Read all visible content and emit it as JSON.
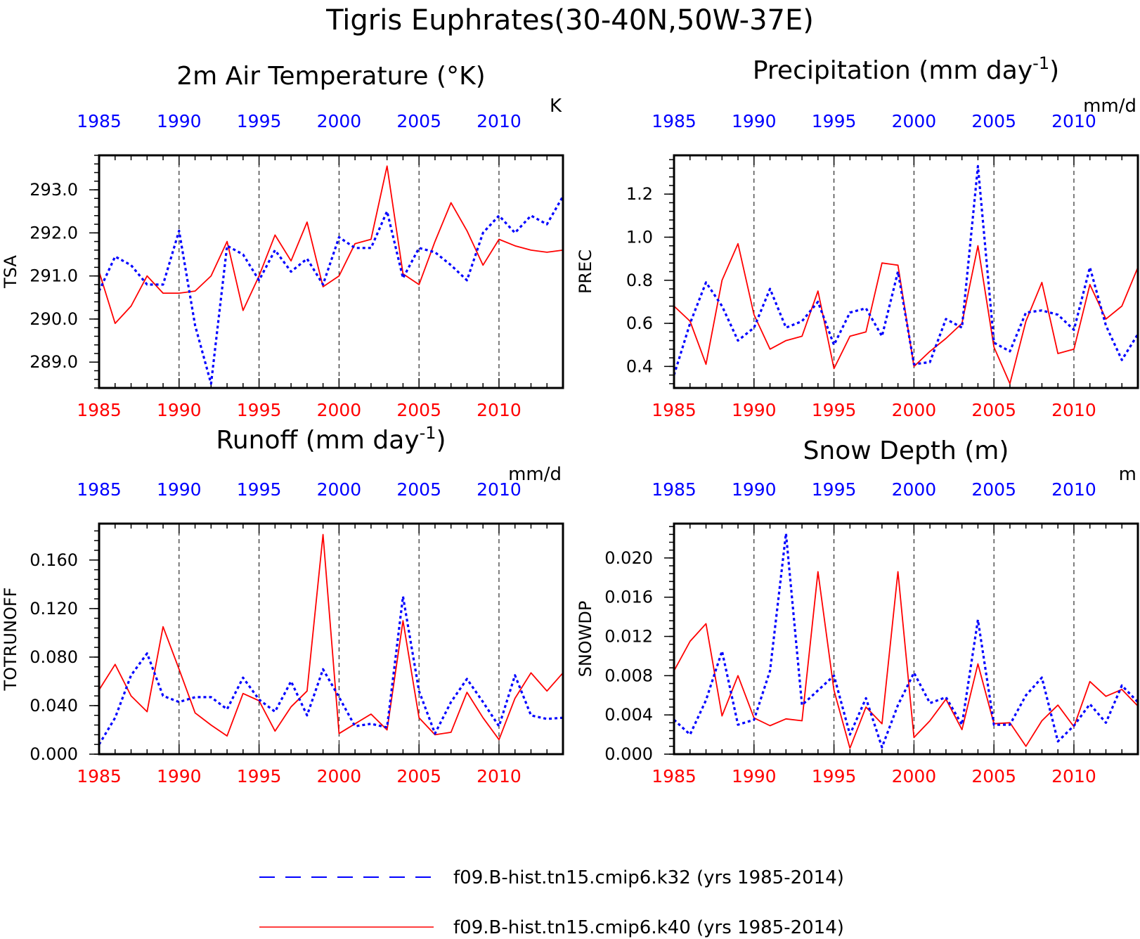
{
  "figure": {
    "title": "Tigris Euphrates(30-40N,50W-37E)"
  },
  "legend": {
    "entries": [
      {
        "label": "f09.B-hist.tn15.cmip6.k32 (yrs 1985-2014)",
        "color": "#0000ff",
        "style": "dashed"
      },
      {
        "label": "f09.B-hist.tn15.cmip6.k40 (yrs 1985-2014)",
        "color": "#ff0000",
        "style": "solid"
      }
    ]
  },
  "colors": {
    "k32": "#0000ff",
    "k40": "#ff0000",
    "axis": "#000000"
  },
  "years": [
    1985,
    1986,
    1987,
    1988,
    1989,
    1990,
    1991,
    1992,
    1993,
    1994,
    1995,
    1996,
    1997,
    1998,
    1999,
    2000,
    2001,
    2002,
    2003,
    2004,
    2005,
    2006,
    2007,
    2008,
    2009,
    2010,
    2011,
    2012,
    2013,
    2014
  ],
  "chart_data": [
    {
      "type": "line",
      "title": "2m Air Temperature (°K)",
      "title_sup": "",
      "units": "K",
      "ylabel": "TSA",
      "xlim": [
        1985,
        2014
      ],
      "ylim": [
        288.4,
        293.8
      ],
      "yticks": [
        289.0,
        290.0,
        291.0,
        292.0,
        293.0
      ],
      "ytick_labels": [
        "289.0",
        "290.0",
        "291.0",
        "292.0",
        "293.0"
      ],
      "xticks": [
        1985,
        1990,
        1995,
        2000,
        2005,
        2010
      ],
      "xtick_labels": [
        "1985",
        "1990",
        "1995",
        "2000",
        "2005",
        "2010"
      ],
      "series": [
        {
          "key": "k32",
          "values": [
            290.65,
            291.45,
            291.25,
            290.8,
            290.8,
            292.05,
            289.85,
            288.5,
            291.7,
            291.5,
            290.9,
            291.6,
            291.1,
            291.4,
            290.8,
            291.9,
            291.65,
            291.65,
            292.5,
            290.95,
            291.65,
            291.55,
            291.25,
            290.9,
            292.0,
            292.4,
            292.0,
            292.4,
            292.2,
            292.85
          ]
        },
        {
          "key": "k40",
          "values": [
            291.1,
            289.9,
            290.3,
            291.0,
            290.6,
            290.6,
            290.65,
            291.0,
            291.8,
            290.2,
            291.0,
            291.95,
            291.35,
            292.25,
            290.75,
            291.0,
            291.75,
            291.85,
            293.55,
            291.05,
            290.8,
            291.8,
            292.7,
            292.05,
            291.25,
            291.85,
            291.7,
            291.6,
            291.55,
            291.6
          ]
        }
      ]
    },
    {
      "type": "line",
      "title": "Precipitation (mm day",
      "title_sup": "-1",
      "units": "mm/d",
      "ylabel": "PREC",
      "xlim": [
        1985,
        2014
      ],
      "ylim": [
        0.3,
        1.38
      ],
      "yticks": [
        0.4,
        0.6,
        0.8,
        1.0,
        1.2
      ],
      "ytick_labels": [
        "0.4",
        "0.6",
        "0.8",
        "1.0",
        "1.2"
      ],
      "xticks": [
        1985,
        1990,
        1995,
        2000,
        2005,
        2010
      ],
      "xtick_labels": [
        "1985",
        "1990",
        "1995",
        "2000",
        "2005",
        "2010"
      ],
      "series": [
        {
          "key": "k32",
          "values": [
            0.36,
            0.6,
            0.79,
            0.68,
            0.52,
            0.58,
            0.76,
            0.58,
            0.61,
            0.7,
            0.5,
            0.65,
            0.67,
            0.54,
            0.84,
            0.41,
            0.42,
            0.62,
            0.58,
            1.33,
            0.51,
            0.47,
            0.65,
            0.66,
            0.64,
            0.57,
            0.86,
            0.59,
            0.43,
            0.55
          ]
        },
        {
          "key": "k40",
          "values": [
            0.68,
            0.61,
            0.41,
            0.8,
            0.97,
            0.64,
            0.48,
            0.52,
            0.54,
            0.75,
            0.39,
            0.54,
            0.56,
            0.88,
            0.87,
            0.4,
            0.47,
            0.53,
            0.6,
            0.96,
            0.49,
            0.32,
            0.61,
            0.79,
            0.46,
            0.48,
            0.78,
            0.62,
            0.68,
            0.86
          ]
        }
      ]
    },
    {
      "type": "line",
      "title": "Runoff (mm day",
      "title_sup": "-1",
      "units": "mm/d",
      "ylabel": "TOTRUNOFF",
      "xlim": [
        1985,
        2014
      ],
      "ylim": [
        0.0,
        0.19
      ],
      "yticks": [
        0.0,
        0.04,
        0.08,
        0.12,
        0.16
      ],
      "ytick_labels": [
        "0.000",
        "0.040",
        "0.080",
        "0.120",
        "0.160"
      ],
      "xticks": [
        1985,
        1990,
        1995,
        2000,
        2005,
        2010
      ],
      "xtick_labels": [
        "1985",
        "1990",
        "1995",
        "2000",
        "2005",
        "2010"
      ],
      "series": [
        {
          "key": "k32",
          "values": [
            0.008,
            0.03,
            0.065,
            0.083,
            0.048,
            0.043,
            0.047,
            0.047,
            0.037,
            0.063,
            0.045,
            0.035,
            0.06,
            0.032,
            0.07,
            0.047,
            0.023,
            0.025,
            0.022,
            0.13,
            0.052,
            0.017,
            0.043,
            0.062,
            0.043,
            0.023,
            0.065,
            0.032,
            0.029,
            0.03
          ]
        },
        {
          "key": "k40",
          "values": [
            0.053,
            0.074,
            0.048,
            0.035,
            0.105,
            0.07,
            0.034,
            0.024,
            0.015,
            0.05,
            0.044,
            0.019,
            0.039,
            0.052,
            0.181,
            0.017,
            0.025,
            0.033,
            0.02,
            0.11,
            0.03,
            0.016,
            0.018,
            0.051,
            0.03,
            0.012,
            0.046,
            0.067,
            0.052,
            0.067
          ]
        }
      ]
    },
    {
      "type": "line",
      "title": "Snow Depth (m)",
      "title_sup": "",
      "units": "m",
      "ylabel": "SNOWDP",
      "xlim": [
        1985,
        2014
      ],
      "ylim": [
        0.0,
        0.0235
      ],
      "yticks": [
        0.0,
        0.004,
        0.008,
        0.012,
        0.016,
        0.02
      ],
      "ytick_labels": [
        "0.000",
        "0.004",
        "0.008",
        "0.012",
        "0.016",
        "0.020"
      ],
      "xticks": [
        1985,
        1990,
        1995,
        2000,
        2005,
        2010
      ],
      "xtick_labels": [
        "1985",
        "1990",
        "1995",
        "2000",
        "2005",
        "2010"
      ],
      "series": [
        {
          "key": "k32",
          "values": [
            0.0035,
            0.002,
            0.0055,
            0.0105,
            0.003,
            0.0035,
            0.0085,
            0.0225,
            0.005,
            0.0065,
            0.008,
            0.002,
            0.0057,
            0.0007,
            0.005,
            0.0083,
            0.0052,
            0.0058,
            0.003,
            0.0137,
            0.003,
            0.003,
            0.006,
            0.0078,
            0.0013,
            0.0029,
            0.0051,
            0.0032,
            0.007,
            0.0053
          ]
        },
        {
          "key": "k40",
          "values": [
            0.0085,
            0.0115,
            0.0133,
            0.0039,
            0.008,
            0.0037,
            0.0029,
            0.0036,
            0.0034,
            0.0186,
            0.0065,
            0.0006,
            0.0048,
            0.0031,
            0.0186,
            0.0017,
            0.0034,
            0.0056,
            0.0025,
            0.0092,
            0.0031,
            0.0032,
            0.0008,
            0.0034,
            0.005,
            0.0028,
            0.0074,
            0.0059,
            0.0066,
            0.0049
          ]
        }
      ]
    }
  ]
}
